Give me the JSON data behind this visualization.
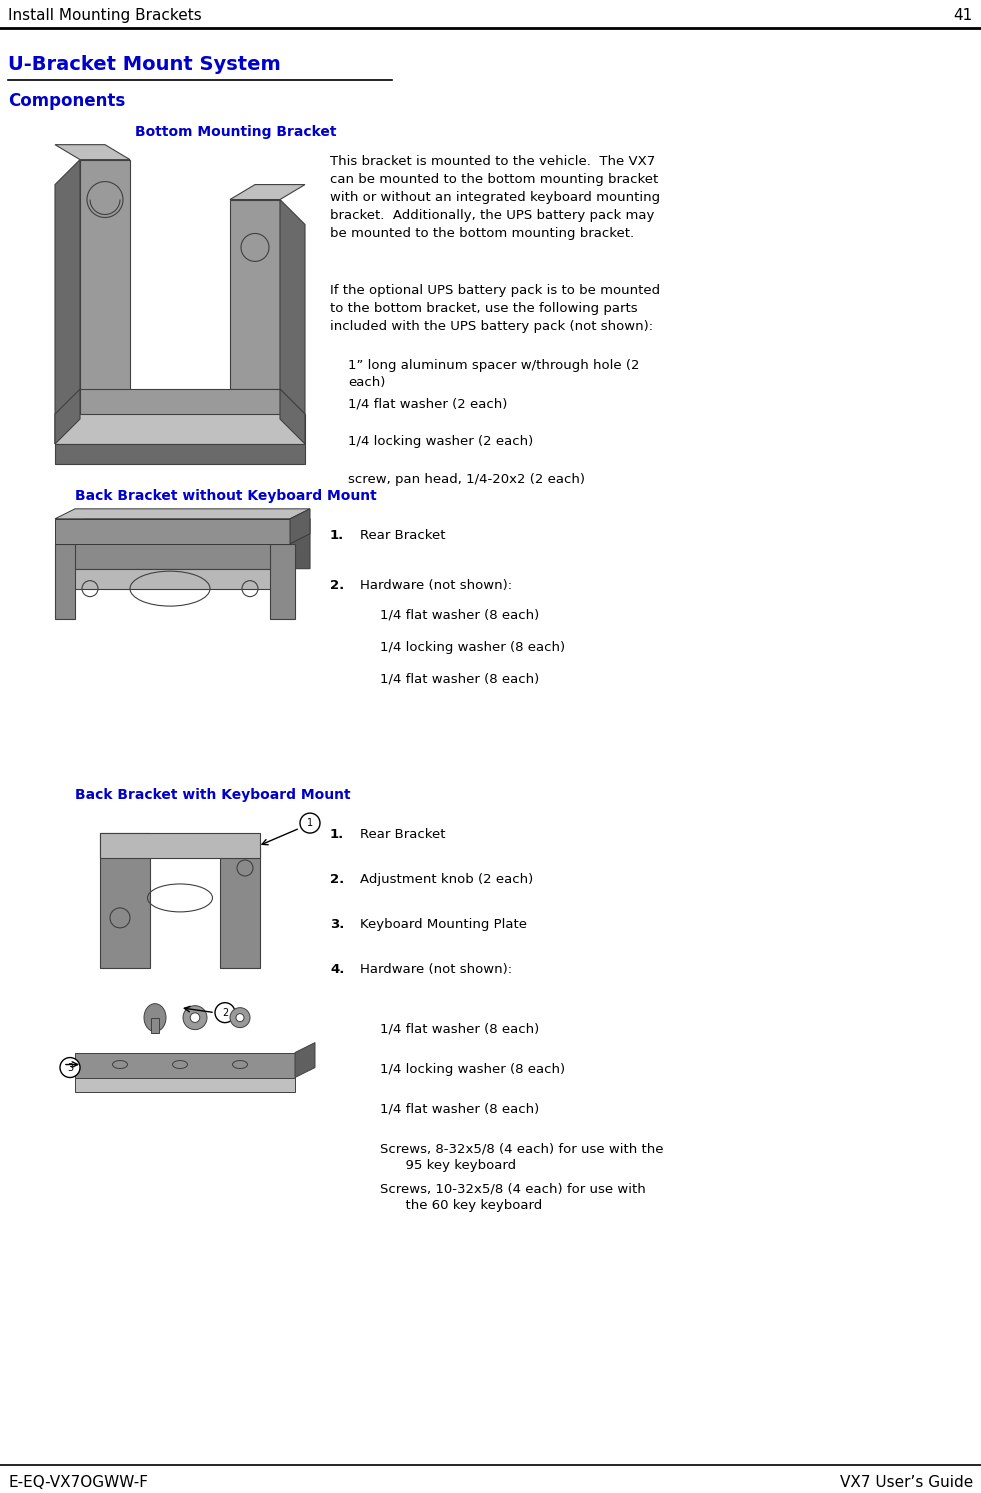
{
  "page_title": "Install Mounting Brackets",
  "page_number": "41",
  "section_title": "U-Bracket Mount System",
  "subsection_title": "Components",
  "footer_left": "E-EQ-VX7OGWW-F",
  "footer_right": "VX7 User’s Guide",
  "blue_color": "#0000CC",
  "black_color": "#000000",
  "bg_color": "#FFFFFF",
  "bottom_bracket_title": "Bottom Mounting Bracket",
  "bottom_bracket_desc1": "This bracket is mounted to the vehicle.  The VX7\ncan be mounted to the bottom mounting bracket\nwith or without an integrated keyboard mounting\nbracket.  Additionally, the UPS battery pack may\nbe mounted to the bottom mounting bracket.",
  "bottom_bracket_desc2": "If the optional UPS battery pack is to be mounted\nto the bottom bracket, use the following parts\nincluded with the UPS battery pack (not shown):",
  "bottom_bracket_items": [
    "1” long aluminum spacer w/through hole (2\neach)",
    "1/4 flat washer (2 each)",
    "1/4 locking washer (2 each)",
    "screw, pan head, 1/4-20x2 (2 each)"
  ],
  "back_bracket_nkb_title": "Back Bracket without Keyboard Mount",
  "back_bracket_nkb_items": [
    [
      "1.",
      "Rear Bracket"
    ],
    [
      "2.",
      "Hardware (not shown):"
    ]
  ],
  "back_bracket_nkb_subitems": [
    "1/4 flat washer (8 each)",
    "1/4 locking washer (8 each)",
    "1/4 flat washer (8 each)"
  ],
  "back_bracket_kb_title": "Back Bracket with Keyboard Mount",
  "back_bracket_kb_items": [
    [
      "1.",
      "Rear Bracket"
    ],
    [
      "2.",
      "Adjustment knob (2 each)"
    ],
    [
      "3.",
      "Keyboard Mounting Plate"
    ],
    [
      "4.",
      "Hardware (not shown):"
    ]
  ],
  "back_bracket_kb_subitems": [
    "1/4 flat washer (8 each)",
    "1/4 locking washer (8 each)",
    "1/4 flat washer (8 each)",
    "Screws, 8-32x5/8 (4 each) for use with the\n      95 key keyboard",
    "Screws, 10-32x5/8 (4 each) for use with\n      the 60 key keyboard"
  ],
  "font_size_body": 9.5,
  "font_size_title": 10,
  "font_size_header": 11,
  "font_size_section": 12,
  "font_size_page_title": 11
}
